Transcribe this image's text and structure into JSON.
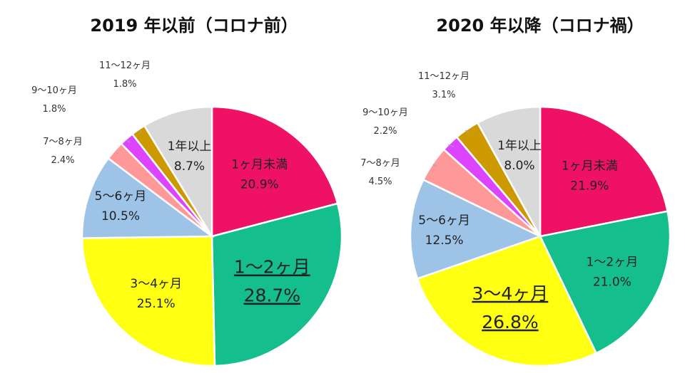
{
  "chart_data": [
    {
      "type": "pie",
      "title": "2019 年以前（コロナ前）",
      "slices": [
        {
          "label": "1ヶ月未満",
          "value": 20.9,
          "value_label": "20.9%",
          "color": "#ee1166",
          "label_place": "inside"
        },
        {
          "label": "1〜2ヶ月",
          "value": 28.7,
          "value_label": "28.7%",
          "color": "#14bf8d",
          "label_place": "inside",
          "emphasis": true
        },
        {
          "label": "3〜4ヶ月",
          "value": 25.1,
          "value_label": "25.1%",
          "color": "#ffff11",
          "label_place": "inside"
        },
        {
          "label": "5〜6ヶ月",
          "value": 10.5,
          "value_label": "10.5%",
          "color": "#9dc3e6",
          "label_place": "inside"
        },
        {
          "label": "7〜8ヶ月",
          "value": 2.4,
          "value_label": "2.4%",
          "color": "#ff9999",
          "label_place": "outside"
        },
        {
          "label": "9〜10ヶ月",
          "value": 1.8,
          "value_label": "1.8%",
          "color": "#dd44ff",
          "label_place": "outside"
        },
        {
          "label": "11〜12ヶ月",
          "value": 1.8,
          "value_label": "1.8%",
          "color": "#cc9900",
          "label_place": "outside"
        },
        {
          "label": "1年以上",
          "value": 8.7,
          "value_label": "8.7%",
          "color": "#d9d9d9",
          "label_place": "inside"
        }
      ]
    },
    {
      "type": "pie",
      "title": "2020 年以降（コロナ禍）",
      "slices": [
        {
          "label": "1ヶ月未満",
          "value": 21.9,
          "value_label": "21.9%",
          "color": "#ee1166",
          "label_place": "inside"
        },
        {
          "label": "1〜2ヶ月",
          "value": 21.0,
          "value_label": "21.0%",
          "color": "#14bf8d",
          "label_place": "inside"
        },
        {
          "label": "3〜4ヶ月",
          "value": 26.8,
          "value_label": "26.8%",
          "color": "#ffff11",
          "label_place": "inside",
          "emphasis": true
        },
        {
          "label": "5〜6ヶ月",
          "value": 12.5,
          "value_label": "12.5%",
          "color": "#9dc3e6",
          "label_place": "inside"
        },
        {
          "label": "7〜8ヶ月",
          "value": 4.5,
          "value_label": "4.5%",
          "color": "#ff9999",
          "label_place": "outside"
        },
        {
          "label": "9〜10ヶ月",
          "value": 2.2,
          "value_label": "2.2%",
          "color": "#dd44ff",
          "label_place": "outside"
        },
        {
          "label": "11〜12ヶ月",
          "value": 3.1,
          "value_label": "3.1%",
          "color": "#cc9900",
          "label_place": "outside"
        },
        {
          "label": "1年以上",
          "value": 8.0,
          "value_label": "8.0%",
          "color": "#d9d9d9",
          "label_place": "inside"
        }
      ]
    }
  ]
}
